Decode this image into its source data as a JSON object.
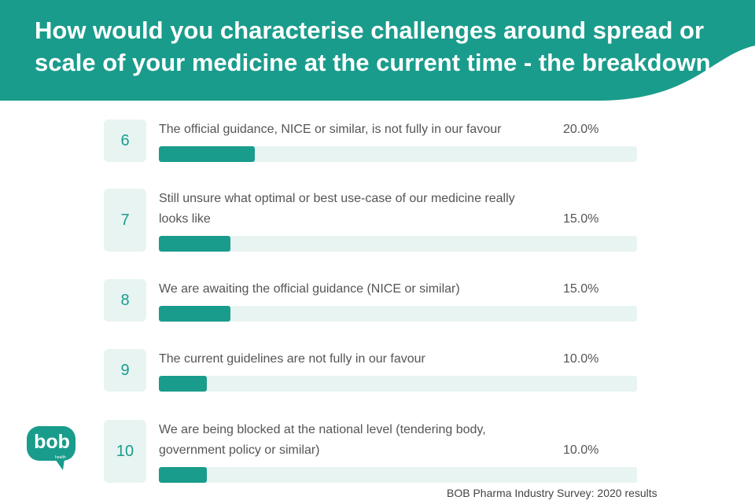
{
  "header": {
    "title": "How would you characterise challenges around spread or scale of your medicine at the current time - the breakdown"
  },
  "colors": {
    "teal": "#1a9c8c",
    "light": "#e7f4f2"
  },
  "chart_data": {
    "type": "bar",
    "orientation": "horizontal",
    "title": "How would you characterise challenges around spread or scale of your medicine at the current time - the breakdown",
    "xlim": [
      0,
      100
    ],
    "categories": [
      "The official guidance, NICE or similar, is not fully in our favour",
      "Still unsure what optimal or best use-case of our medicine really looks like",
      "We are awaiting the official guidance (NICE or similar)",
      "The current guidelines are not fully in our favour",
      "We are being blocked at the national level (tendering body, government policy or similar)"
    ],
    "series": [
      {
        "values": [
          20.0,
          15.0,
          15.0,
          10.0,
          10.0
        ]
      }
    ],
    "items": [
      {
        "rank": "6",
        "label": "The official guidance, NICE or similar, is not fully in our favour",
        "value": 20.0,
        "value_label": "20.0%"
      },
      {
        "rank": "7",
        "label": "Still unsure what optimal or best use-case of our medicine really looks like",
        "value": 15.0,
        "value_label": "15.0%"
      },
      {
        "rank": "8",
        "label": "We are awaiting the official guidance (NICE or similar)",
        "value": 15.0,
        "value_label": "15.0%"
      },
      {
        "rank": "9",
        "label": "The current guidelines are not fully in our favour",
        "value": 10.0,
        "value_label": "10.0%"
      },
      {
        "rank": "10",
        "label": "We are being blocked at the national level (tendering body, government policy or similar)",
        "value": 10.0,
        "value_label": "10.0%"
      }
    ]
  },
  "logo": {
    "text": "bob",
    "subtext": "health"
  },
  "footer": {
    "source": "BOB Pharma Industry Survey: 2020 results"
  }
}
